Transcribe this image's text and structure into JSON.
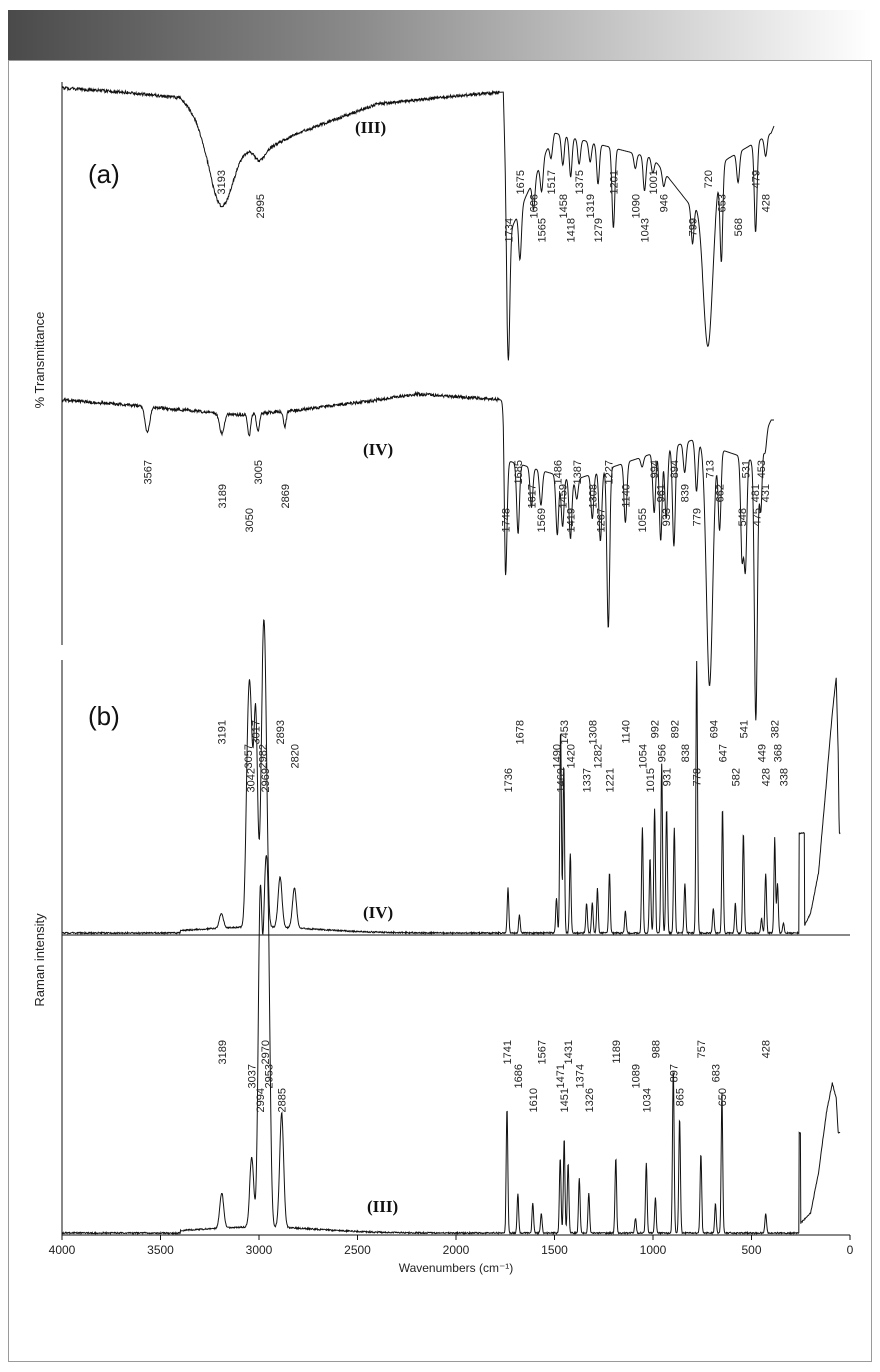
{
  "chart_data": [
    {
      "type": "line",
      "panel": "(a)",
      "ylabel": "% Transmittance",
      "xlabel": "Wavenumbers (cm⁻¹)",
      "xlim": [
        4000,
        0
      ],
      "series": [
        {
          "name": "(III)",
          "peaks": [
            3193,
            2995,
            1734,
            1675,
            1606,
            1565,
            1517,
            1458,
            1418,
            1375,
            1319,
            1279,
            1201,
            1090,
            1043,
            1001,
            946,
            799,
            720,
            653,
            568,
            479,
            428
          ]
        },
        {
          "name": "(IV)",
          "peaks": [
            3567,
            3189,
            3050,
            3005,
            2869,
            1748,
            1685,
            1617,
            1569,
            1486,
            1459,
            1419,
            1387,
            1308,
            1267,
            1227,
            1140,
            1055,
            994,
            961,
            933,
            894,
            839,
            779,
            713,
            662,
            548,
            531,
            481,
            475,
            453,
            431
          ]
        }
      ]
    },
    {
      "type": "line",
      "panel": "(b)",
      "ylabel": "Raman intensity",
      "xlabel": "Wavenumbers (cm⁻¹)",
      "xlim": [
        4000,
        0
      ],
      "xticks": [
        4000,
        3500,
        3000,
        2500,
        2000,
        1500,
        1000,
        500,
        0
      ],
      "series": [
        {
          "name": "(IV)",
          "peaks": [
            3191,
            3057,
            3042,
            3017,
            2982,
            2969,
            2893,
            2820,
            1736,
            1678,
            1490,
            1469,
            1453,
            1420,
            1337,
            1308,
            1282,
            1221,
            1140,
            1054,
            1015,
            992,
            956,
            931,
            892,
            838,
            778,
            694,
            647,
            582,
            541,
            449,
            428,
            382,
            368,
            338
          ]
        },
        {
          "name": "(III)",
          "peaks": [
            3189,
            3037,
            2994,
            2970,
            2953,
            2885,
            1741,
            1686,
            1610,
            1567,
            1471,
            1451,
            1431,
            1374,
            1326,
            1189,
            1089,
            1034,
            988,
            897,
            865,
            757,
            683,
            650,
            428
          ]
        }
      ]
    }
  ]
}
